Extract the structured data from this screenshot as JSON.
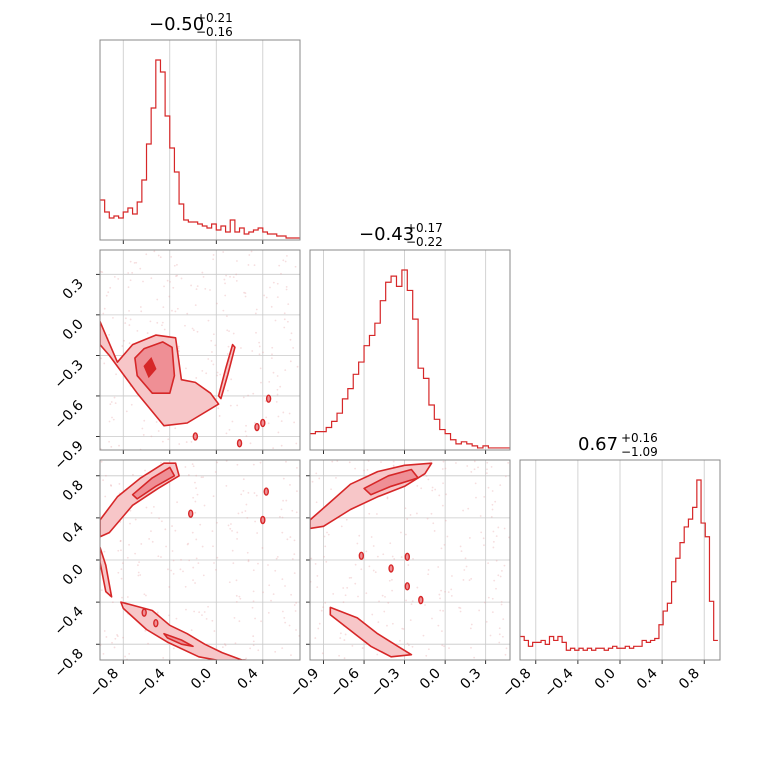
{
  "colors": {
    "accent": "#d62728",
    "fill_outer": "#f7c6c8",
    "fill_inner": "#ef8f95",
    "grid": "#c8c8c8",
    "scatter": "#e4a0a4"
  },
  "chart_data": {
    "type": "corner",
    "grid": true,
    "titles": [
      {
        "panel": "hist-1",
        "main": "−0.50",
        "sup": "+0.21",
        "sub": "−0.16"
      },
      {
        "panel": "hist-2",
        "main": "−0.43",
        "sup": "+0.17",
        "sub": "−0.22"
      },
      {
        "panel": "hist-3",
        "main": "0.67",
        "sup": "+0.16",
        "sub": "−1.09"
      }
    ],
    "axes": {
      "p1": {
        "range": [
          -1.0,
          0.72
        ],
        "ticks": [
          "−0.8",
          "−0.4",
          "0.0",
          "0.4"
        ],
        "tick_values": [
          -0.8,
          -0.4,
          0.0,
          0.4
        ]
      },
      "p2": {
        "range": [
          -1.0,
          0.48
        ],
        "ticks": [
          "−0.9",
          "−0.6",
          "−0.3",
          "0.0",
          "0.3"
        ],
        "tick_values": [
          -0.9,
          -0.6,
          -0.3,
          0.0,
          0.3
        ]
      },
      "p3": {
        "range": [
          -0.95,
          0.95
        ],
        "ticks": [
          "−0.8",
          "−0.4",
          "0.0",
          "0.4",
          "0.8"
        ],
        "tick_values": [
          -0.8,
          -0.4,
          0.0,
          0.4,
          0.8
        ]
      }
    },
    "histograms": [
      {
        "panel": "hist-1",
        "parameter": "p1",
        "bin_centers": [
          -0.98,
          -0.94,
          -0.9,
          -0.86,
          -0.82,
          -0.78,
          -0.74,
          -0.7,
          -0.66,
          -0.62,
          -0.58,
          -0.54,
          -0.5,
          -0.46,
          -0.42,
          -0.38,
          -0.34,
          -0.3,
          -0.26,
          -0.22,
          -0.18,
          -0.14,
          -0.1,
          -0.06,
          -0.02,
          0.02,
          0.06,
          0.1,
          0.14,
          0.18,
          0.22,
          0.26,
          0.3,
          0.34,
          0.38,
          0.42,
          0.46,
          0.5,
          0.54,
          0.58,
          0.62,
          0.66,
          0.7
        ],
        "counts": [
          0.2,
          0.14,
          0.11,
          0.12,
          0.11,
          0.14,
          0.16,
          0.13,
          0.19,
          0.3,
          0.48,
          0.66,
          0.9,
          0.84,
          0.62,
          0.46,
          0.34,
          0.18,
          0.1,
          0.09,
          0.09,
          0.08,
          0.07,
          0.06,
          0.08,
          0.05,
          0.07,
          0.04,
          0.1,
          0.04,
          0.06,
          0.03,
          0.04,
          0.05,
          0.06,
          0.04,
          0.03,
          0.03,
          0.02,
          0.02,
          0.01,
          0.01,
          0.01
        ]
      },
      {
        "panel": "hist-2",
        "parameter": "p2",
        "bin_centers": [
          -0.98,
          -0.94,
          -0.9,
          -0.86,
          -0.82,
          -0.78,
          -0.74,
          -0.7,
          -0.66,
          -0.62,
          -0.58,
          -0.54,
          -0.5,
          -0.46,
          -0.42,
          -0.38,
          -0.34,
          -0.3,
          -0.26,
          -0.22,
          -0.18,
          -0.14,
          -0.1,
          -0.06,
          -0.02,
          0.02,
          0.06,
          0.1,
          0.14,
          0.18,
          0.22,
          0.26,
          0.3,
          0.34,
          0.38,
          0.42,
          0.46
        ],
        "counts": [
          0.08,
          0.09,
          0.09,
          0.11,
          0.14,
          0.18,
          0.25,
          0.3,
          0.37,
          0.43,
          0.51,
          0.56,
          0.62,
          0.73,
          0.82,
          0.85,
          0.8,
          0.88,
          0.78,
          0.64,
          0.4,
          0.35,
          0.22,
          0.15,
          0.1,
          0.08,
          0.05,
          0.03,
          0.04,
          0.03,
          0.02,
          0.01,
          0.02,
          0.01,
          0.01,
          0.01,
          0.01
        ]
      },
      {
        "panel": "hist-3",
        "parameter": "p3",
        "bin_centers": [
          -0.93,
          -0.89,
          -0.85,
          -0.81,
          -0.77,
          -0.73,
          -0.69,
          -0.65,
          -0.61,
          -0.57,
          -0.53,
          -0.49,
          -0.45,
          -0.41,
          -0.37,
          -0.33,
          -0.29,
          -0.25,
          -0.21,
          -0.17,
          -0.13,
          -0.09,
          -0.05,
          -0.01,
          0.03,
          0.07,
          0.11,
          0.15,
          0.19,
          0.23,
          0.27,
          0.31,
          0.35,
          0.39,
          0.43,
          0.47,
          0.51,
          0.55,
          0.59,
          0.63,
          0.67,
          0.71,
          0.75,
          0.79,
          0.83,
          0.87,
          0.91
        ],
        "counts": [
          0.12,
          0.1,
          0.07,
          0.09,
          0.09,
          0.1,
          0.08,
          0.12,
          0.1,
          0.12,
          0.09,
          0.05,
          0.06,
          0.05,
          0.06,
          0.05,
          0.06,
          0.05,
          0.06,
          0.06,
          0.05,
          0.06,
          0.07,
          0.06,
          0.06,
          0.07,
          0.06,
          0.07,
          0.07,
          0.1,
          0.09,
          0.1,
          0.11,
          0.18,
          0.25,
          0.29,
          0.4,
          0.52,
          0.6,
          0.68,
          0.72,
          0.78,
          0.92,
          0.7,
          0.63,
          0.3,
          0.1
        ]
      }
    ],
    "density_panels": [
      {
        "panel": "pair-p1-p2",
        "x": "p1",
        "y": "p2",
        "outer_regions": [
          [
            [
              -1.0,
              -0.05
            ],
            [
              -0.85,
              -0.35
            ],
            [
              -0.72,
              -0.22
            ],
            [
              -0.52,
              -0.15
            ],
            [
              -0.35,
              -0.17
            ],
            [
              -0.3,
              -0.48
            ],
            [
              -0.18,
              -0.5
            ],
            [
              -0.05,
              -0.58
            ],
            [
              0.02,
              -0.66
            ],
            [
              -0.25,
              -0.8
            ],
            [
              -0.45,
              -0.82
            ],
            [
              -0.68,
              -0.58
            ],
            [
              -0.92,
              -0.3
            ],
            [
              -1.0,
              -0.22
            ]
          ],
          [
            [
              0.02,
              -0.6
            ],
            [
              0.08,
              -0.4
            ],
            [
              0.14,
              -0.22
            ],
            [
              0.16,
              -0.24
            ],
            [
              0.1,
              -0.44
            ],
            [
              0.04,
              -0.62
            ]
          ]
        ],
        "inner_regions": [
          [
            [
              -0.7,
              -0.32
            ],
            [
              -0.62,
              -0.25
            ],
            [
              -0.46,
              -0.2
            ],
            [
              -0.38,
              -0.24
            ],
            [
              -0.36,
              -0.45
            ],
            [
              -0.4,
              -0.58
            ],
            [
              -0.55,
              -0.58
            ],
            [
              -0.68,
              -0.45
            ]
          ]
        ],
        "core_regions": [
          [
            [
              -0.62,
              -0.38
            ],
            [
              -0.56,
              -0.32
            ],
            [
              -0.52,
              -0.4
            ],
            [
              -0.58,
              -0.46
            ]
          ]
        ],
        "islands": [
          [
            0.45,
            -0.62
          ],
          [
            0.35,
            -0.83
          ],
          [
            0.4,
            -0.8
          ],
          [
            -0.18,
            -0.9
          ],
          [
            0.2,
            -0.95
          ]
        ]
      },
      {
        "panel": "pair-p1-p3",
        "x": "p1",
        "y": "p3",
        "outer_regions": [
          [
            [
              -1.0,
              0.38
            ],
            [
              -0.85,
              0.6
            ],
            [
              -0.65,
              0.78
            ],
            [
              -0.45,
              0.92
            ],
            [
              -0.35,
              0.92
            ],
            [
              -0.32,
              0.8
            ],
            [
              -0.5,
              0.68
            ],
            [
              -0.72,
              0.52
            ],
            [
              -0.92,
              0.26
            ],
            [
              -1.0,
              0.22
            ]
          ],
          [
            [
              -1.0,
              -0.02
            ],
            [
              -0.95,
              -0.3
            ],
            [
              -0.9,
              -0.35
            ],
            [
              -0.95,
              -0.05
            ],
            [
              -1.0,
              0.12
            ]
          ],
          [
            [
              -0.82,
              -0.4
            ],
            [
              -0.55,
              -0.48
            ],
            [
              -0.4,
              -0.62
            ],
            [
              -0.25,
              -0.7
            ],
            [
              -0.1,
              -0.8
            ],
            [
              0.05,
              -0.88
            ],
            [
              0.22,
              -0.95
            ],
            [
              0.25,
              -0.95
            ],
            [
              0.05,
              -0.96
            ],
            [
              -0.15,
              -0.92
            ],
            [
              -0.42,
              -0.78
            ],
            [
              -0.6,
              -0.66
            ],
            [
              -0.8,
              -0.46
            ]
          ]
        ],
        "inner_regions": [
          [
            [
              -0.72,
              0.62
            ],
            [
              -0.55,
              0.78
            ],
            [
              -0.4,
              0.88
            ],
            [
              -0.36,
              0.8
            ],
            [
              -0.52,
              0.7
            ],
            [
              -0.68,
              0.58
            ]
          ],
          [
            [
              -0.45,
              -0.7
            ],
            [
              -0.3,
              -0.76
            ],
            [
              -0.2,
              -0.82
            ],
            [
              -0.3,
              -0.8
            ],
            [
              -0.42,
              -0.74
            ]
          ]
        ],
        "core_regions": [],
        "islands": [
          [
            0.43,
            0.65
          ],
          [
            0.4,
            0.38
          ],
          [
            -0.22,
            0.44
          ],
          [
            -0.52,
            -0.6
          ],
          [
            -0.62,
            -0.5
          ]
        ]
      },
      {
        "panel": "pair-p2-p3",
        "x": "p2",
        "y": "p3",
        "outer_regions": [
          [
            [
              -1.0,
              0.38
            ],
            [
              -0.85,
              0.55
            ],
            [
              -0.7,
              0.72
            ],
            [
              -0.5,
              0.84
            ],
            [
              -0.3,
              0.9
            ],
            [
              -0.1,
              0.92
            ],
            [
              -0.15,
              0.82
            ],
            [
              -0.3,
              0.7
            ],
            [
              -0.5,
              0.6
            ],
            [
              -0.7,
              0.48
            ],
            [
              -0.9,
              0.32
            ],
            [
              -1.0,
              0.3
            ]
          ],
          [
            [
              -0.85,
              -0.45
            ],
            [
              -0.65,
              -0.55
            ],
            [
              -0.5,
              -0.7
            ],
            [
              -0.35,
              -0.82
            ],
            [
              -0.25,
              -0.9
            ],
            [
              -0.4,
              -0.92
            ],
            [
              -0.55,
              -0.82
            ],
            [
              -0.72,
              -0.65
            ],
            [
              -0.85,
              -0.52
            ]
          ]
        ],
        "inner_regions": [
          [
            [
              -0.6,
              0.68
            ],
            [
              -0.42,
              0.8
            ],
            [
              -0.25,
              0.86
            ],
            [
              -0.2,
              0.78
            ],
            [
              -0.4,
              0.7
            ],
            [
              -0.55,
              0.62
            ]
          ]
        ],
        "core_regions": [],
        "islands": [
          [
            -0.4,
            -0.08
          ],
          [
            -0.28,
            -0.25
          ],
          [
            -0.18,
            -0.38
          ],
          [
            -0.62,
            0.04
          ],
          [
            -0.28,
            0.03
          ]
        ]
      }
    ]
  }
}
